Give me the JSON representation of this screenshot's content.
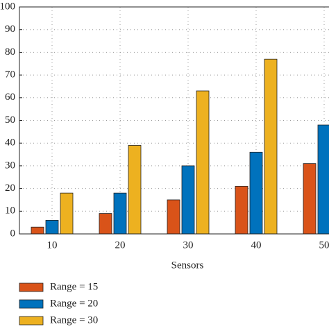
{
  "chart_data": {
    "type": "bar",
    "x_label": "Sensors",
    "categories": [
      "10",
      "20",
      "30",
      "40",
      "50"
    ],
    "series": [
      {
        "name": "Range = 15",
        "color": "#d95319",
        "values": [
          3,
          9,
          15,
          21,
          31
        ]
      },
      {
        "name": "Range = 20",
        "color": "#0072bd",
        "values": [
          6,
          18,
          30,
          36,
          48
        ]
      },
      {
        "name": "Range = 30",
        "color": "#edb120",
        "values": [
          18,
          39,
          63,
          77,
          null
        ]
      }
    ],
    "ylim": [
      0,
      100
    ],
    "yticks": [
      0,
      10,
      20,
      30,
      40,
      50,
      60,
      70,
      80,
      90,
      100
    ],
    "grid": true
  }
}
